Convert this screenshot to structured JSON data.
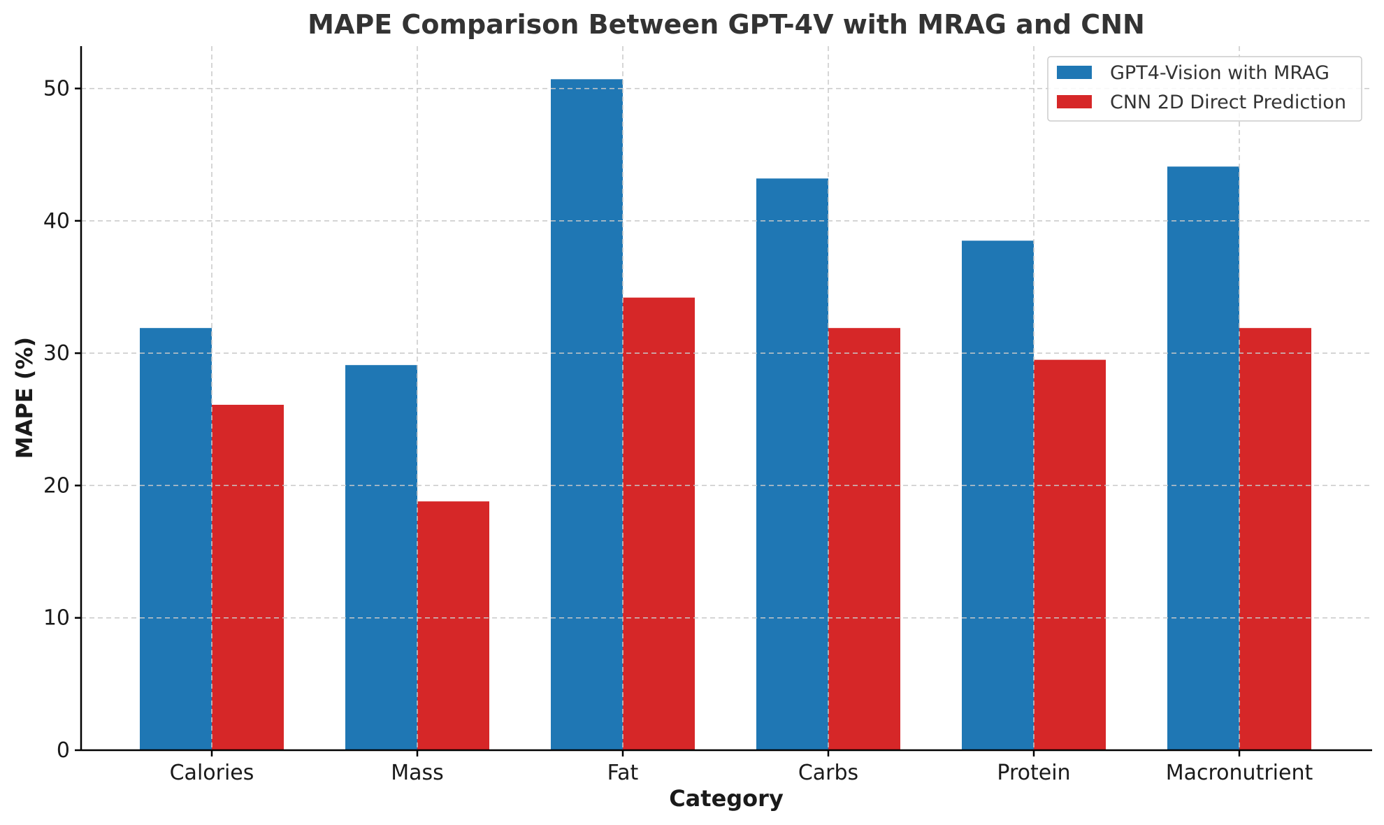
{
  "chart_data": {
    "type": "bar",
    "title": "MAPE Comparison Between GPT-4V with MRAG and CNN",
    "xlabel": "Category",
    "ylabel": "MAPE (%)",
    "categories": [
      "Calories",
      "Mass",
      "Fat",
      "Carbs",
      "Protein",
      "Macronutrient"
    ],
    "series": [
      {
        "name": "GPT4-Vision with MRAG",
        "color": "#1f77b4",
        "values": [
          31.9,
          29.1,
          50.7,
          43.2,
          38.5,
          44.1
        ]
      },
      {
        "name": "CNN 2D Direct Prediction",
        "color": "#d62728",
        "values": [
          26.1,
          18.8,
          34.2,
          31.9,
          29.5,
          31.9
        ]
      }
    ],
    "ylim": [
      0,
      53.2
    ],
    "yticks": [
      0,
      10,
      20,
      30,
      40,
      50
    ],
    "grid": true,
    "legend_position": "top-right"
  }
}
